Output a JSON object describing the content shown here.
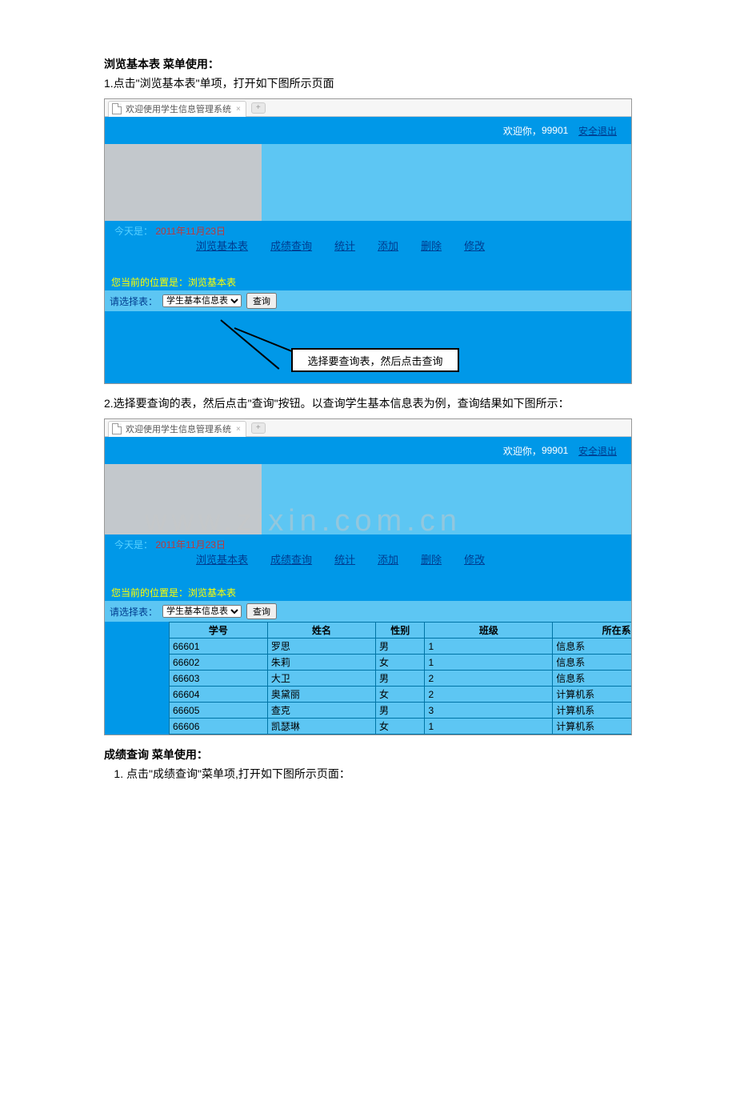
{
  "doc": {
    "section1_title": "浏览基本表 菜单使用：",
    "section1_text": "1.点击\"浏览基本表\"单项，打开如下图所示页面",
    "section2_text": "2.选择要查询的表，然后点击\"查询\"按钮。以查询学生基本信息表为例，查询结果如下图所示：",
    "section3_title": "成绩查询 菜单使用：",
    "section3_text": "点击\"成绩查询\"菜单项,打开如下图所示页面："
  },
  "app": {
    "tab_title": "欢迎使用学生信息管理系统",
    "welcome_prefix": "欢迎你，",
    "user_id": "99901",
    "logout": "安全退出",
    "today_prefix": "今天是：",
    "today_date": "2011年11月23日",
    "nav": [
      "浏览基本表",
      "成绩查询",
      "统计",
      "添加",
      "删除",
      "修改"
    ],
    "breadcrumb_prefix": "您当前的位置是：",
    "breadcrumb_current": "浏览基本表",
    "select_label": "请选择表：",
    "select_value": "学生基本信息表",
    "query_btn": "查询",
    "callout_text": "选择要查询表，然后点击查询"
  },
  "table": {
    "columns": [
      "学号",
      "姓名",
      "性别",
      "班级",
      "所在系"
    ],
    "rows": [
      [
        "66601",
        "罗思",
        "男",
        "1",
        "信息系"
      ],
      [
        "66602",
        "朱莉",
        "女",
        "1",
        "信息系"
      ],
      [
        "66603",
        "大卫",
        "男",
        "2",
        "信息系"
      ],
      [
        "66604",
        "奥黛丽",
        "女",
        "2",
        "计算机系"
      ],
      [
        "66605",
        "查克",
        "男",
        "3",
        "计算机系"
      ],
      [
        "66606",
        "凯瑟琳",
        "女",
        "1",
        "计算机系"
      ]
    ],
    "col_widths": [
      "100px",
      "110px",
      "50px",
      "130px",
      "130px"
    ]
  },
  "watermark": "www.zixin.com.cn"
}
